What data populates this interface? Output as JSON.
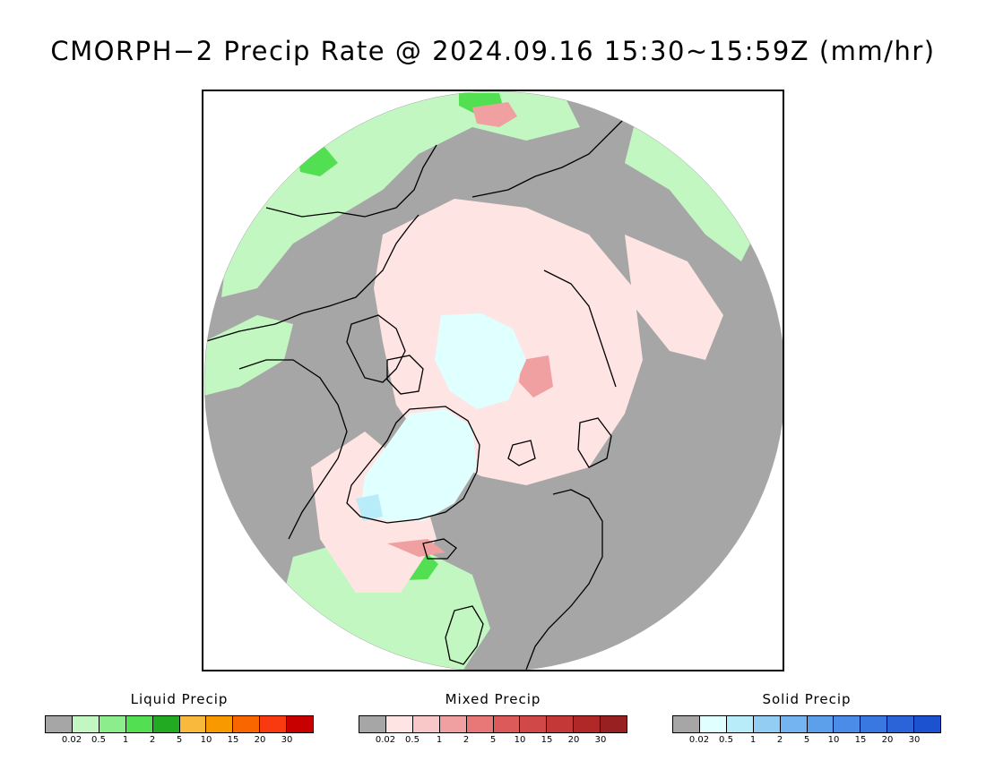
{
  "title": "CMORPH−2 Precip Rate @ 2024.09.16 15:30~15:59Z (mm/hr)",
  "map": {
    "projection": "north polar stereographic",
    "background_color": "#aaaaaa",
    "coastline_color": "#000000"
  },
  "legends": [
    {
      "title": "Liquid Precip",
      "colors": [
        "#a6a6a6",
        "#c2f7c2",
        "#8ced8c",
        "#52e052",
        "#22aa22",
        "#f9b93c",
        "#f99900",
        "#f96600",
        "#f93a10",
        "#c80000"
      ],
      "ticks": [
        "0.02",
        "0.5",
        "1",
        "2",
        "5",
        "10",
        "15",
        "20",
        "30"
      ]
    },
    {
      "title": "Mixed Precip",
      "colors": [
        "#a6a6a6",
        "#ffe4e4",
        "#f8c8c8",
        "#f0a0a0",
        "#e87878",
        "#dc5a5a",
        "#d04848",
        "#c43838",
        "#b02828",
        "#982020"
      ],
      "ticks": [
        "0.02",
        "0.5",
        "1",
        "2",
        "5",
        "10",
        "15",
        "20",
        "30"
      ]
    },
    {
      "title": "Solid Precip",
      "colors": [
        "#a6a6a6",
        "#e0ffff",
        "#b8ecf8",
        "#94cdf4",
        "#74b4f0",
        "#5ca0ec",
        "#4a8ce8",
        "#3878e0",
        "#2a64d8",
        "#1c52d0"
      ],
      "ticks": [
        "0.02",
        "0.5",
        "1",
        "2",
        "5",
        "10",
        "15",
        "20",
        "30"
      ]
    }
  ]
}
